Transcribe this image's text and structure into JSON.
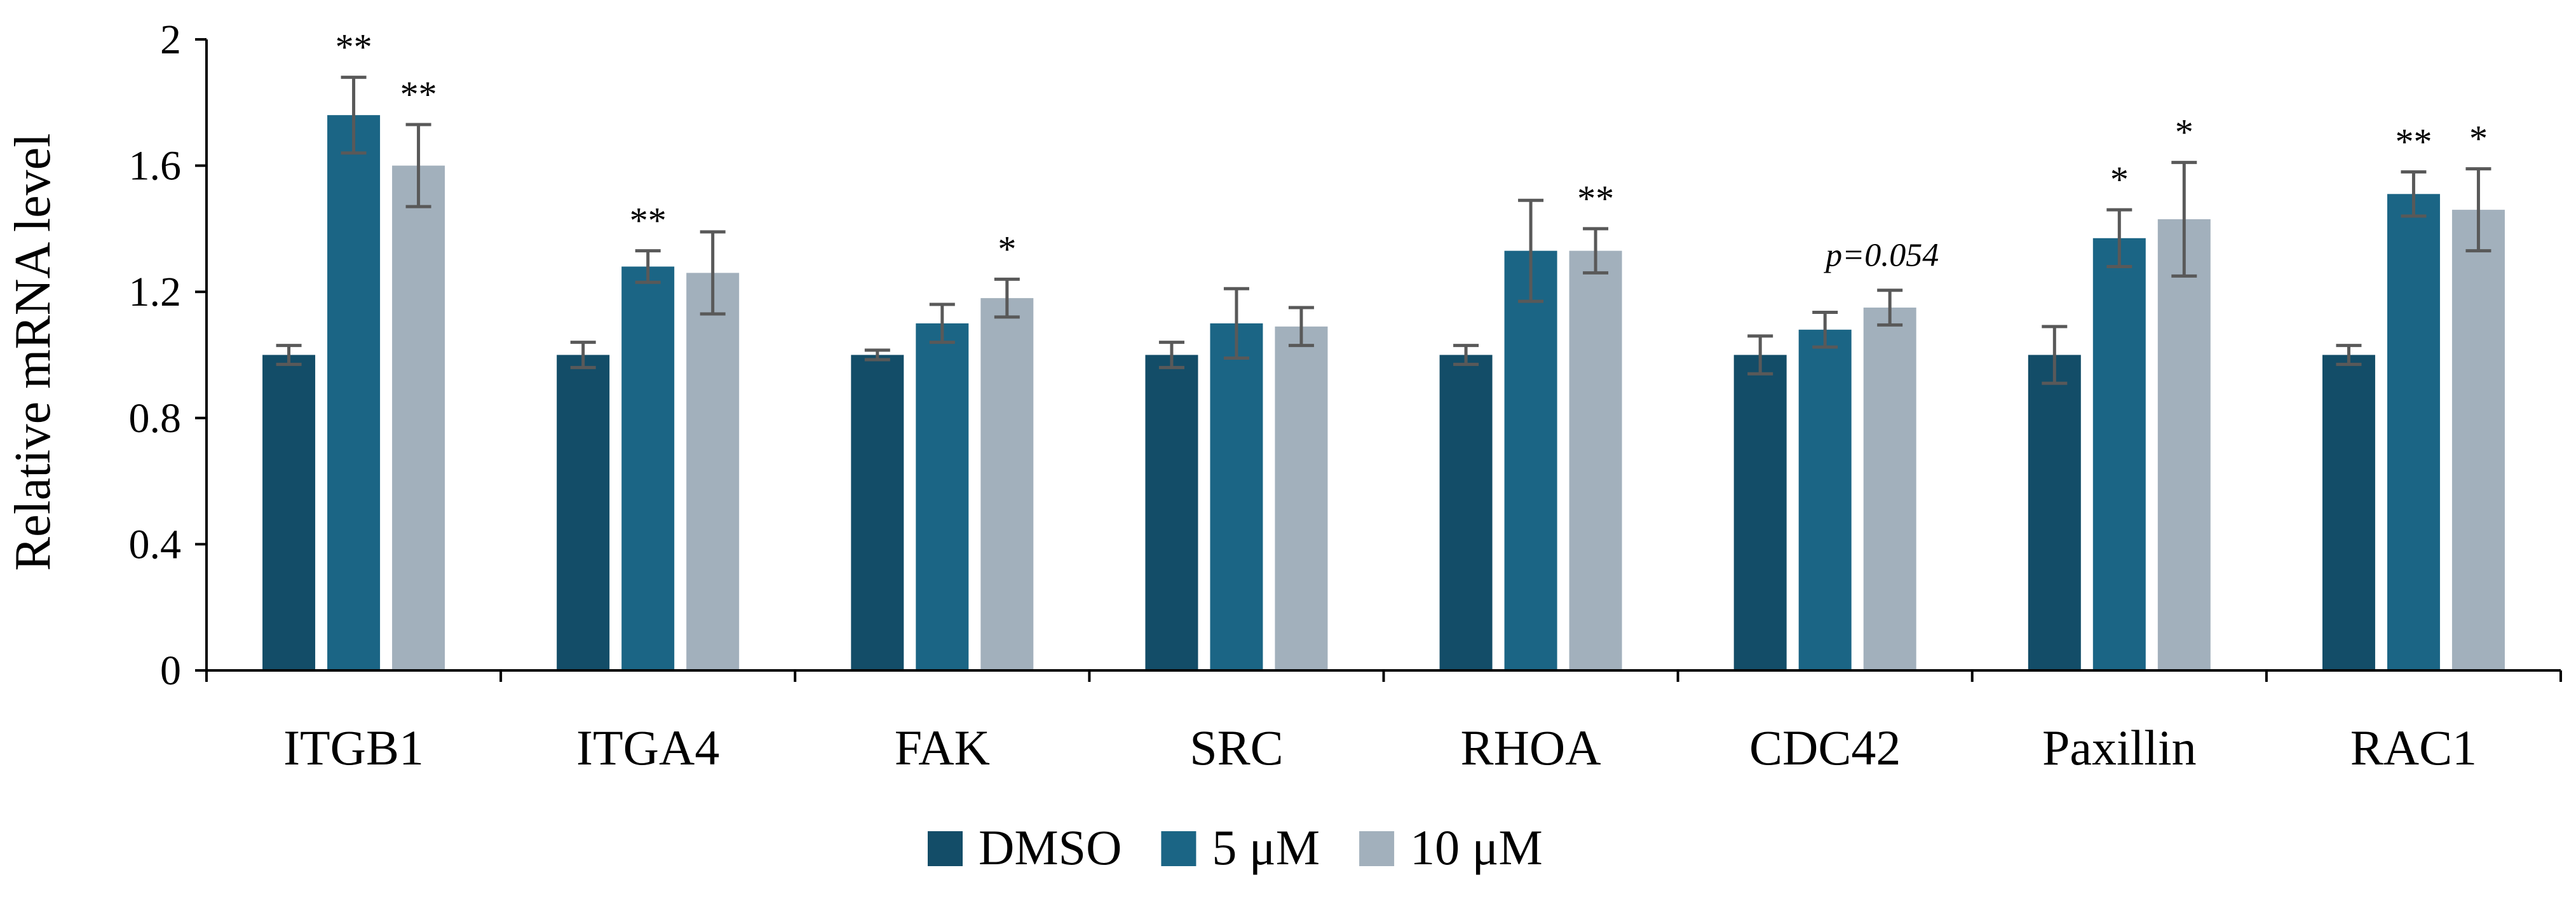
{
  "chart_data": {
    "type": "bar",
    "ylabel": "Relative mRNA level",
    "xlabel": "",
    "ylim": [
      0,
      2
    ],
    "yticks": [
      "0",
      "0.4",
      "0.8",
      "1.2",
      "1.6",
      "2"
    ],
    "grid": false,
    "legend_position": "bottom-center",
    "categories": [
      "ITGB1",
      "ITGA4",
      "FAK",
      "SRC",
      "RHOA",
      "CDC42",
      "Paxillin",
      "RAC1"
    ],
    "series": [
      {
        "name": "DMSO",
        "color": "#134d68",
        "values": [
          1.0,
          1.0,
          1.0,
          1.0,
          1.0,
          1.0,
          1.0,
          1.0
        ],
        "errors": [
          0.03,
          0.04,
          0.015,
          0.04,
          0.03,
          0.06,
          0.09,
          0.03
        ],
        "annotations": [
          "",
          "",
          "",
          "",
          "",
          "",
          "",
          ""
        ]
      },
      {
        "name": "5 μM",
        "color": "#1b6585",
        "values": [
          1.76,
          1.28,
          1.1,
          1.1,
          1.33,
          1.08,
          1.37,
          1.51
        ],
        "errors": [
          0.12,
          0.05,
          0.06,
          0.11,
          0.16,
          0.055,
          0.09,
          0.07
        ],
        "annotations": [
          "**",
          "**",
          "",
          "",
          "",
          "",
          "*",
          "**"
        ]
      },
      {
        "name": "10 μM",
        "color": "#a2b0bc",
        "values": [
          1.6,
          1.26,
          1.18,
          1.09,
          1.33,
          1.15,
          1.43,
          1.46
        ],
        "errors": [
          0.13,
          0.13,
          0.06,
          0.06,
          0.07,
          0.055,
          0.18,
          0.13
        ],
        "annotations": [
          "**",
          "",
          "*",
          "",
          "**",
          "p=0.054",
          "*",
          "*"
        ]
      }
    ]
  }
}
